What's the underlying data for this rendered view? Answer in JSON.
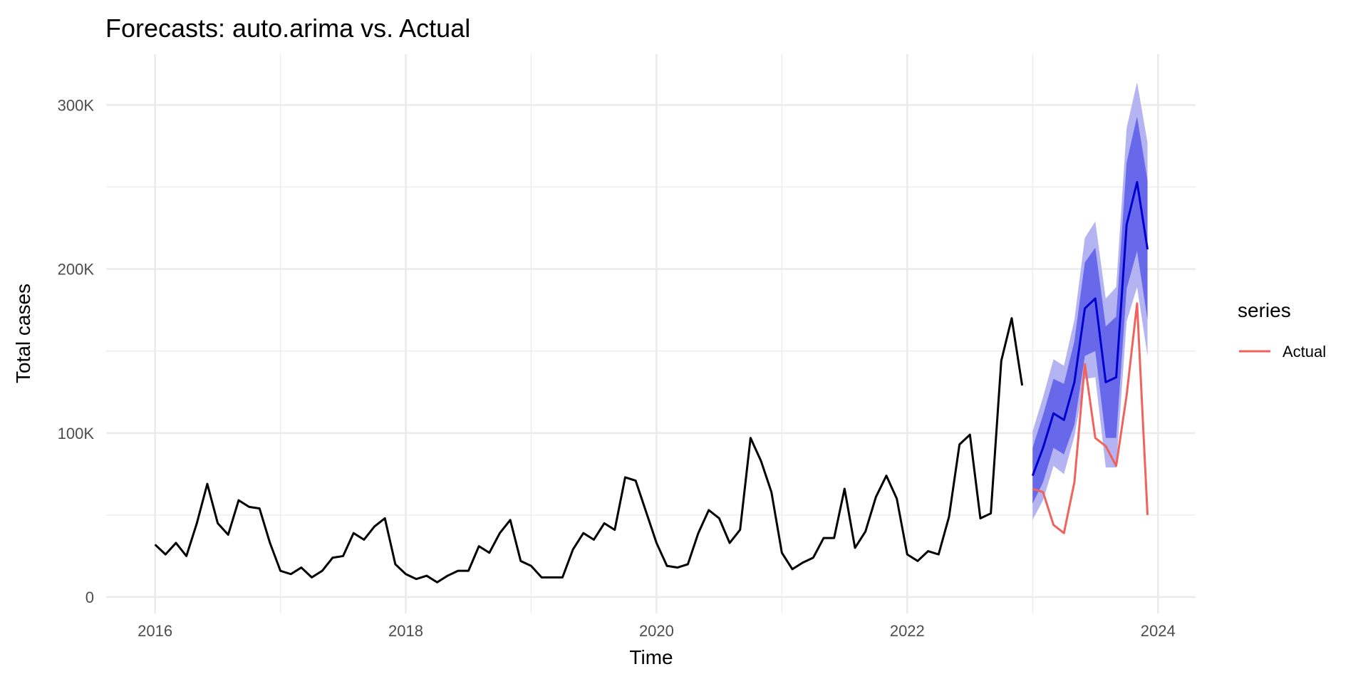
{
  "chart_data": {
    "type": "line",
    "title": "Forecasts: auto.arima vs. Actual",
    "xlabel": "Time",
    "ylabel": "Total cases",
    "xlim": [
      2015.61,
      2024.3
    ],
    "ylim": [
      -10000,
      331000
    ],
    "x_ticks": [
      2016,
      2018,
      2020,
      2022,
      2024
    ],
    "x_tick_labels": [
      "2016",
      "2018",
      "2020",
      "2022",
      "2024"
    ],
    "y_ticks": [
      0,
      100000,
      200000,
      300000
    ],
    "y_tick_labels": [
      "0",
      "100K",
      "200K",
      "300K"
    ],
    "grid": true,
    "legend": {
      "title": "series",
      "position": "right",
      "entries": [
        {
          "name": "Actual",
          "color": "#f0625c"
        }
      ]
    },
    "colors": {
      "history": "#000000",
      "forecast_mean": "#0000cc",
      "band_80": "#6868ea",
      "band_95": "#b4b4f2",
      "actual": "#f0625c",
      "grid": "#ebebeb"
    },
    "history": {
      "start": "2016-01",
      "frequency": "monthly",
      "values": [
        32000,
        26000,
        33000,
        25000,
        45000,
        69000,
        45000,
        38000,
        59000,
        55000,
        54000,
        33000,
        16000,
        14000,
        18000,
        12000,
        16000,
        24000,
        25000,
        39000,
        35000,
        43000,
        48000,
        20000,
        14000,
        11000,
        13000,
        9000,
        13000,
        16000,
        16000,
        31000,
        27000,
        39000,
        47000,
        22000,
        19000,
        12000,
        12000,
        12000,
        29000,
        39000,
        35000,
        45000,
        41000,
        73000,
        71000,
        52000,
        33000,
        19000,
        18000,
        20000,
        39000,
        53000,
        48000,
        33000,
        41000,
        97000,
        83000,
        64000,
        27000,
        17000,
        21000,
        24000,
        36000,
        36000,
        66000,
        30000,
        40000,
        61000,
        74000,
        60000,
        26000,
        22000,
        28000,
        26000,
        49000,
        93000,
        99000,
        48000,
        51000,
        144000,
        170000,
        129000
      ]
    },
    "forecast": {
      "start": "2023-01",
      "frequency": "monthly",
      "mean": [
        74000,
        91000,
        112000,
        108000,
        131000,
        176000,
        182000,
        131000,
        134000,
        227000,
        253000,
        212000
      ],
      "lower_80": [
        57000,
        70000,
        91000,
        87000,
        105000,
        147000,
        150000,
        97000,
        97000,
        188000,
        211000,
        169000
      ],
      "upper_80": [
        91000,
        111000,
        133000,
        130000,
        156000,
        204000,
        213000,
        165000,
        171000,
        265000,
        293000,
        254000
      ],
      "lower_95": [
        47000,
        59000,
        80000,
        75000,
        98000,
        133000,
        134000,
        79000,
        79000,
        168000,
        189000,
        147000
      ],
      "upper_95": [
        101000,
        122000,
        145000,
        141000,
        169000,
        219000,
        229000,
        182000,
        189000,
        286000,
        314000,
        277000
      ]
    },
    "series": [
      {
        "name": "Actual",
        "start": "2023-01",
        "frequency": "monthly",
        "values": [
          66000,
          64000,
          44000,
          39000,
          70000,
          142000,
          97000,
          92000,
          80000,
          123000,
          179000,
          50000
        ]
      }
    ]
  }
}
